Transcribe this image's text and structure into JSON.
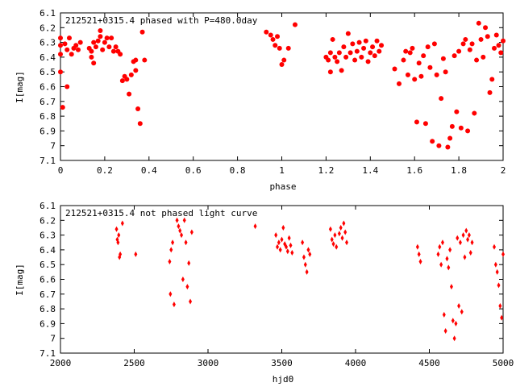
{
  "chart_data": [
    {
      "type": "scatter",
      "title": "212521+0315.4 phased with P=480.0day",
      "xlabel": "phase",
      "ylabel": "I[mag]",
      "xlim": [
        0,
        2
      ],
      "ylim": [
        7.1,
        6.1
      ],
      "y_inverted": true,
      "grid": false,
      "marker_color": "#ff0000",
      "marker": "filled-circle",
      "xticks": [
        "0",
        "0.2",
        "0.4",
        "0.6",
        "0.8",
        "1",
        "1.2",
        "1.4",
        "1.6",
        "1.8",
        "2"
      ],
      "yticks": [
        "6.1",
        "6.2",
        "6.3",
        "6.4",
        "6.5",
        "6.6",
        "6.7",
        "6.8",
        "6.9",
        "7",
        "7.1"
      ],
      "points": [
        [
          0.0,
          6.27
        ],
        [
          0.0,
          6.32
        ],
        [
          0.0,
          6.38
        ],
        [
          0.0,
          6.5
        ],
        [
          0.01,
          6.74
        ],
        [
          0.02,
          6.31
        ],
        [
          0.03,
          6.35
        ],
        [
          0.03,
          6.6
        ],
        [
          0.04,
          6.27
        ],
        [
          0.05,
          6.38
        ],
        [
          0.06,
          6.34
        ],
        [
          0.07,
          6.32
        ],
        [
          0.08,
          6.35
        ],
        [
          0.09,
          6.3
        ],
        [
          0.13,
          6.34
        ],
        [
          0.14,
          6.36
        ],
        [
          0.14,
          6.4
        ],
        [
          0.15,
          6.44
        ],
        [
          0.15,
          6.3
        ],
        [
          0.16,
          6.33
        ],
        [
          0.17,
          6.29
        ],
        [
          0.18,
          6.26
        ],
        [
          0.18,
          6.22
        ],
        [
          0.19,
          6.35
        ],
        [
          0.2,
          6.3
        ],
        [
          0.21,
          6.27
        ],
        [
          0.22,
          6.33
        ],
        [
          0.23,
          6.27
        ],
        [
          0.24,
          6.36
        ],
        [
          0.25,
          6.33
        ],
        [
          0.26,
          6.36
        ],
        [
          0.27,
          6.38
        ],
        [
          0.28,
          6.56
        ],
        [
          0.29,
          6.53
        ],
        [
          0.3,
          6.55
        ],
        [
          0.31,
          6.65
        ],
        [
          0.32,
          6.52
        ],
        [
          0.33,
          6.43
        ],
        [
          0.34,
          6.49
        ],
        [
          0.34,
          6.42
        ],
        [
          0.35,
          6.75
        ],
        [
          0.36,
          6.85
        ],
        [
          0.37,
          6.23
        ],
        [
          0.38,
          6.42
        ],
        [
          0.93,
          6.23
        ],
        [
          0.95,
          6.25
        ],
        [
          0.96,
          6.28
        ],
        [
          0.97,
          6.32
        ],
        [
          0.98,
          6.26
        ],
        [
          0.99,
          6.34
        ],
        [
          1.0,
          6.45
        ],
        [
          1.01,
          6.42
        ],
        [
          1.03,
          6.34
        ],
        [
          1.06,
          6.18
        ],
        [
          1.2,
          6.4
        ],
        [
          1.21,
          6.42
        ],
        [
          1.22,
          6.37
        ],
        [
          1.22,
          6.5
        ],
        [
          1.23,
          6.28
        ],
        [
          1.24,
          6.4
        ],
        [
          1.25,
          6.43
        ],
        [
          1.26,
          6.37
        ],
        [
          1.27,
          6.49
        ],
        [
          1.28,
          6.33
        ],
        [
          1.29,
          6.4
        ],
        [
          1.3,
          6.24
        ],
        [
          1.31,
          6.37
        ],
        [
          1.32,
          6.31
        ],
        [
          1.33,
          6.42
        ],
        [
          1.34,
          6.36
        ],
        [
          1.35,
          6.3
        ],
        [
          1.36,
          6.4
        ],
        [
          1.37,
          6.34
        ],
        [
          1.38,
          6.29
        ],
        [
          1.39,
          6.43
        ],
        [
          1.4,
          6.37
        ],
        [
          1.41,
          6.33
        ],
        [
          1.42,
          6.39
        ],
        [
          1.43,
          6.29
        ],
        [
          1.44,
          6.36
        ],
        [
          1.45,
          6.32
        ],
        [
          1.51,
          6.48
        ],
        [
          1.53,
          6.58
        ],
        [
          1.55,
          6.42
        ],
        [
          1.56,
          6.36
        ],
        [
          1.57,
          6.52
        ],
        [
          1.58,
          6.37
        ],
        [
          1.59,
          6.34
        ],
        [
          1.6,
          6.55
        ],
        [
          1.61,
          6.84
        ],
        [
          1.62,
          6.44
        ],
        [
          1.63,
          6.53
        ],
        [
          1.64,
          6.39
        ],
        [
          1.65,
          6.85
        ],
        [
          1.66,
          6.33
        ],
        [
          1.67,
          6.47
        ],
        [
          1.68,
          6.97
        ],
        [
          1.69,
          6.31
        ],
        [
          1.7,
          6.52
        ],
        [
          1.71,
          7.0
        ],
        [
          1.72,
          6.68
        ],
        [
          1.73,
          6.41
        ],
        [
          1.74,
          6.5
        ],
        [
          1.75,
          7.01
        ],
        [
          1.76,
          6.95
        ],
        [
          1.77,
          6.87
        ],
        [
          1.78,
          6.39
        ],
        [
          1.79,
          6.77
        ],
        [
          1.8,
          6.36
        ],
        [
          1.81,
          6.88
        ],
        [
          1.82,
          6.31
        ],
        [
          1.83,
          6.28
        ],
        [
          1.84,
          6.9
        ],
        [
          1.85,
          6.35
        ],
        [
          1.86,
          6.31
        ],
        [
          1.87,
          6.78
        ],
        [
          1.88,
          6.42
        ],
        [
          1.89,
          6.17
        ],
        [
          1.9,
          6.28
        ],
        [
          1.91,
          6.4
        ],
        [
          1.92,
          6.2
        ],
        [
          1.93,
          6.26
        ],
        [
          1.94,
          6.64
        ],
        [
          1.95,
          6.55
        ],
        [
          1.96,
          6.34
        ],
        [
          1.97,
          6.25
        ],
        [
          1.98,
          6.32
        ],
        [
          1.99,
          6.37
        ],
        [
          2.0,
          6.29
        ]
      ]
    },
    {
      "type": "scatter",
      "title": "212521+0315.4 not phased light curve",
      "xlabel": "hjd0",
      "ylabel": "I[mag]",
      "xlim": [
        2000,
        5000
      ],
      "ylim": [
        7.1,
        6.1
      ],
      "y_inverted": true,
      "grid": false,
      "marker_color": "#ff0000",
      "marker": "diamond",
      "xticks": [
        "2000",
        "2500",
        "3000",
        "3500",
        "4000",
        "4500",
        "5000"
      ],
      "yticks": [
        "6.1",
        "6.2",
        "6.3",
        "6.4",
        "6.5",
        "6.6",
        "6.7",
        "6.8",
        "6.9",
        "7",
        "7.1"
      ],
      "points": [
        [
          2380,
          6.26
        ],
        [
          2385,
          6.33
        ],
        [
          2390,
          6.35
        ],
        [
          2395,
          6.3
        ],
        [
          2400,
          6.45
        ],
        [
          2405,
          6.43
        ],
        [
          2420,
          6.22
        ],
        [
          2510,
          6.43
        ],
        [
          2740,
          6.48
        ],
        [
          2745,
          6.7
        ],
        [
          2750,
          6.4
        ],
        [
          2760,
          6.35
        ],
        [
          2770,
          6.77
        ],
        [
          2790,
          6.2
        ],
        [
          2800,
          6.24
        ],
        [
          2810,
          6.27
        ],
        [
          2820,
          6.3
        ],
        [
          2830,
          6.6
        ],
        [
          2840,
          6.2
        ],
        [
          2850,
          6.35
        ],
        [
          2860,
          6.65
        ],
        [
          2870,
          6.49
        ],
        [
          2880,
          6.75
        ],
        [
          2890,
          6.28
        ],
        [
          3320,
          6.24
        ],
        [
          3460,
          6.3
        ],
        [
          3470,
          6.38
        ],
        [
          3480,
          6.35
        ],
        [
          3490,
          6.4
        ],
        [
          3500,
          6.33
        ],
        [
          3510,
          6.25
        ],
        [
          3520,
          6.36
        ],
        [
          3530,
          6.38
        ],
        [
          3540,
          6.41
        ],
        [
          3550,
          6.32
        ],
        [
          3560,
          6.37
        ],
        [
          3570,
          6.42
        ],
        [
          3640,
          6.35
        ],
        [
          3650,
          6.45
        ],
        [
          3660,
          6.5
        ],
        [
          3670,
          6.55
        ],
        [
          3680,
          6.4
        ],
        [
          3690,
          6.43
        ],
        [
          3830,
          6.26
        ],
        [
          3840,
          6.33
        ],
        [
          3850,
          6.36
        ],
        [
          3860,
          6.3
        ],
        [
          3870,
          6.38
        ],
        [
          3890,
          6.29
        ],
        [
          3900,
          6.25
        ],
        [
          3910,
          6.32
        ],
        [
          3920,
          6.22
        ],
        [
          3930,
          6.28
        ],
        [
          3940,
          6.35
        ],
        [
          4420,
          6.38
        ],
        [
          4430,
          6.43
        ],
        [
          4440,
          6.48
        ],
        [
          4560,
          6.43
        ],
        [
          4570,
          6.38
        ],
        [
          4580,
          6.5
        ],
        [
          4590,
          6.35
        ],
        [
          4600,
          6.84
        ],
        [
          4610,
          6.95
        ],
        [
          4620,
          6.46
        ],
        [
          4630,
          6.52
        ],
        [
          4640,
          6.4
        ],
        [
          4650,
          6.65
        ],
        [
          4660,
          6.88
        ],
        [
          4670,
          7.0
        ],
        [
          4680,
          6.9
        ],
        [
          4690,
          6.32
        ],
        [
          4700,
          6.78
        ],
        [
          4710,
          6.35
        ],
        [
          4720,
          6.82
        ],
        [
          4730,
          6.3
        ],
        [
          4740,
          6.45
        ],
        [
          4750,
          6.27
        ],
        [
          4760,
          6.33
        ],
        [
          4770,
          6.3
        ],
        [
          4780,
          6.42
        ],
        [
          4790,
          6.35
        ],
        [
          4940,
          6.38
        ],
        [
          4950,
          6.5
        ],
        [
          4960,
          6.55
        ],
        [
          4970,
          6.64
        ],
        [
          4980,
          6.78
        ],
        [
          4990,
          6.86
        ],
        [
          5000,
          6.43
        ]
      ]
    }
  ]
}
